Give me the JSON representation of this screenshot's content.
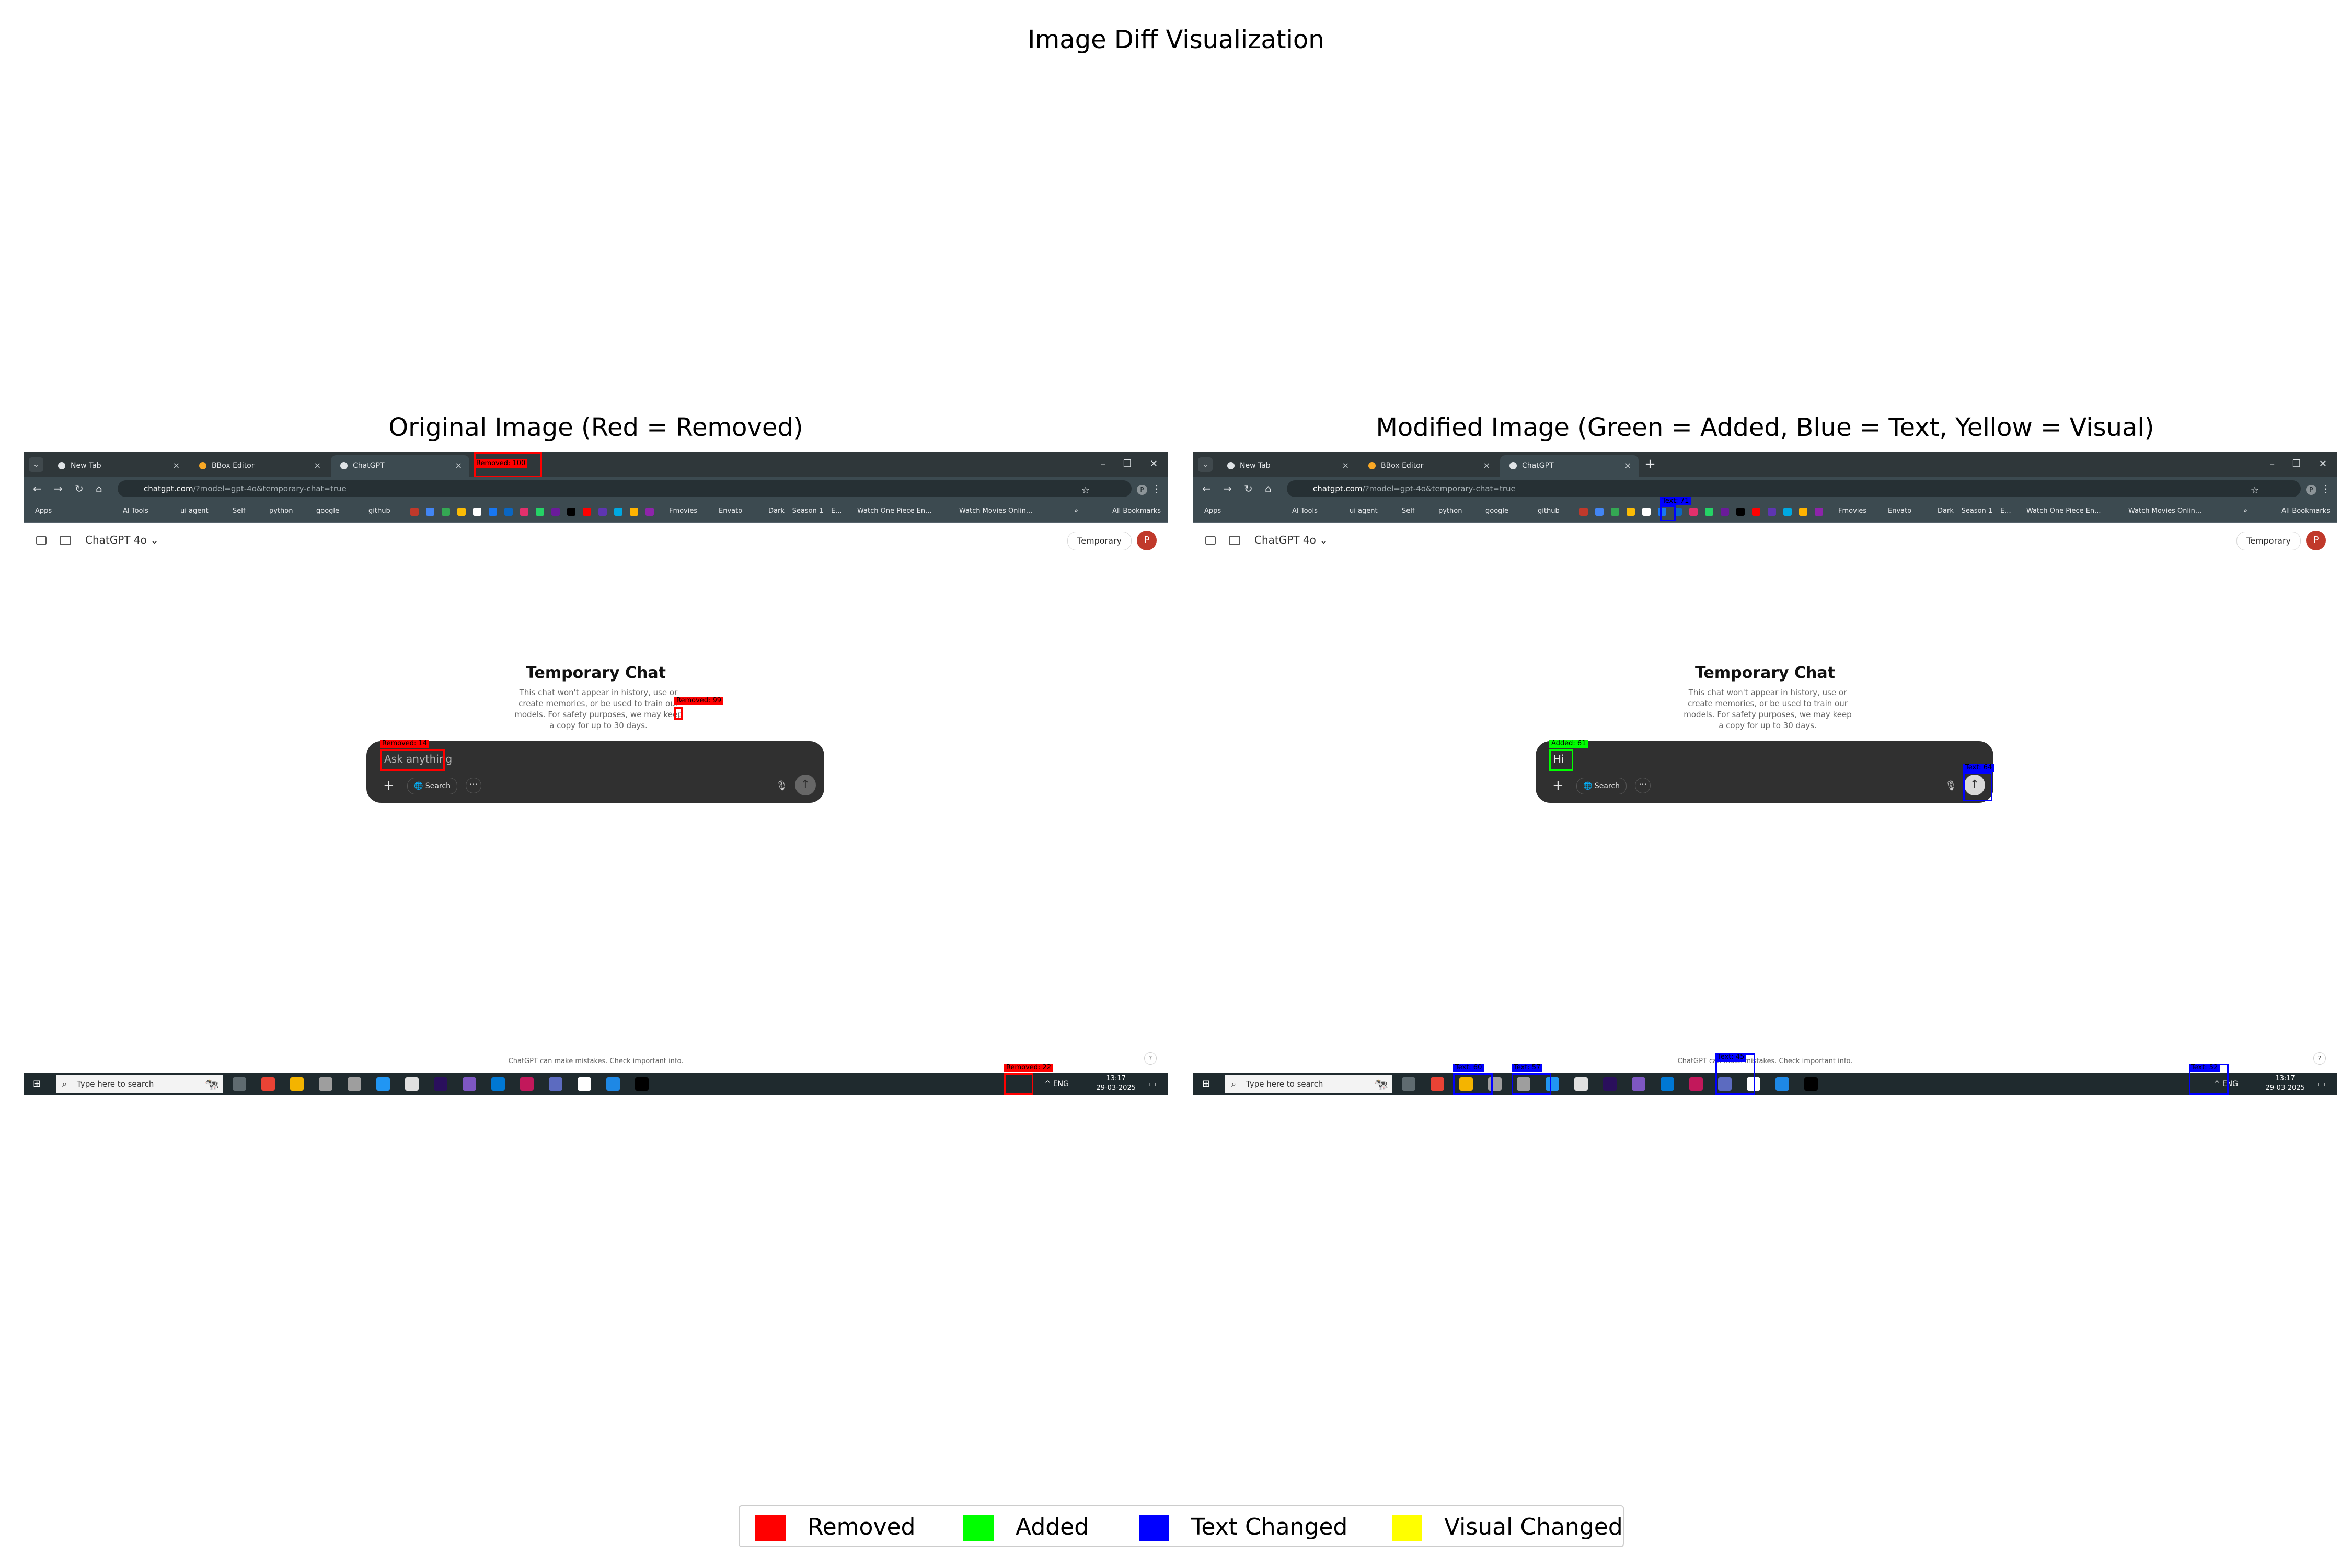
{
  "figure": {
    "title": "Image Diff Visualization",
    "left_title": "Original Image (Red = Removed)",
    "right_title": "Modified Image (Green = Added, Blue = Text, Yellow = Visual)"
  },
  "colors": {
    "removed": "#ff0000",
    "added": "#00ff00",
    "text_changed": "#0000ff",
    "visual_changed": "#ffff00"
  },
  "browser": {
    "tabs": [
      "New Tab",
      "BBox Editor",
      "ChatGPT"
    ],
    "close_glyph": "×",
    "new_tab_glyph": "+",
    "window_controls": [
      "–",
      "❐",
      "✕"
    ],
    "nav": [
      "←",
      "→",
      "↻",
      "⌂"
    ],
    "url_domain": "chatgpt.com",
    "url_path": "/?model=gpt-4o&temporary-chat=true",
    "star": "☆",
    "profile_initial": "P",
    "more": "⋮",
    "bookmarks": [
      "Apps",
      "AI Tools",
      "ui agent",
      "Self",
      "python",
      "google",
      "github",
      "Fmovies",
      "Envato",
      "Dark – Season 1 – E...",
      "Watch One Piece En...",
      "Watch Movies Onlin..."
    ],
    "bookmarks_more": "»",
    "all_bookmarks": "All Bookmarks",
    "bookmark_icon_colors": [
      "#c0392b",
      "#4285f4",
      "#34a853",
      "#fbbc05",
      "#ffffff",
      "#1877f2",
      "#0a66c2",
      "#e1306c",
      "#25d366",
      "#6a1b9a",
      "#000000",
      "#ff0000",
      "#5e35b1",
      "#00a8e1",
      "#ffb300",
      "#8e24aa"
    ]
  },
  "page": {
    "model": "ChatGPT 4o",
    "model_caret": "⌄",
    "temporary_button": "Temporary",
    "avatar_initial": "P",
    "title": "Temporary Chat",
    "description_original": "This chat won't appear in history, use or create memories, or be used to train our models. For safety purposes, we may keep a copy for up to 30 days.",
    "description_modified": "This chat won't appear in history, use or create memories, or be used to train our models. For safety purposes, we may keep a copy for up to 30 days.",
    "composer_original": "Ask anything",
    "composer_modified": "Hi",
    "composer_plus": "+",
    "composer_search": "Search",
    "composer_dots": "···",
    "composer_mic": "🎙",
    "composer_send": "↑",
    "footer": "ChatGPT can make mistakes. Check important info.",
    "help": "?"
  },
  "taskbar": {
    "start": "⊞",
    "search_placeholder": "Type here to search",
    "search_icon": "⌕",
    "deco": "🐄",
    "app_colors": [
      "#5f6b70",
      "#ea4335",
      "#f4b400",
      "#9e9e9e",
      "#9e9e9e",
      "#2196f3",
      "#e0e0e0",
      "#2a0f5c",
      "#7e57c2",
      "#0078d4",
      "#c2185b",
      "#5c6bc0",
      "#ffffff",
      "#1e88e5",
      "#000000"
    ],
    "tray": "^  ENG",
    "time": "13:17",
    "date": "29-03-2025",
    "notification_glyph": "▭"
  },
  "diff_labels": {
    "removed_a": "Removed: 100",
    "removed_b": "Removed: 99",
    "removed_c": "Removed: 14",
    "removed_d": "Removed: 22",
    "added_a": "Added: 61",
    "text_a": "Text: 71",
    "text_b": "Text: 64",
    "text_c": "Text: 60",
    "text_d": "Text: 57",
    "text_e": "Text: 45",
    "text_f": "Text: 52"
  },
  "legend": [
    "Removed",
    "Added",
    "Text Changed",
    "Visual Changed"
  ]
}
